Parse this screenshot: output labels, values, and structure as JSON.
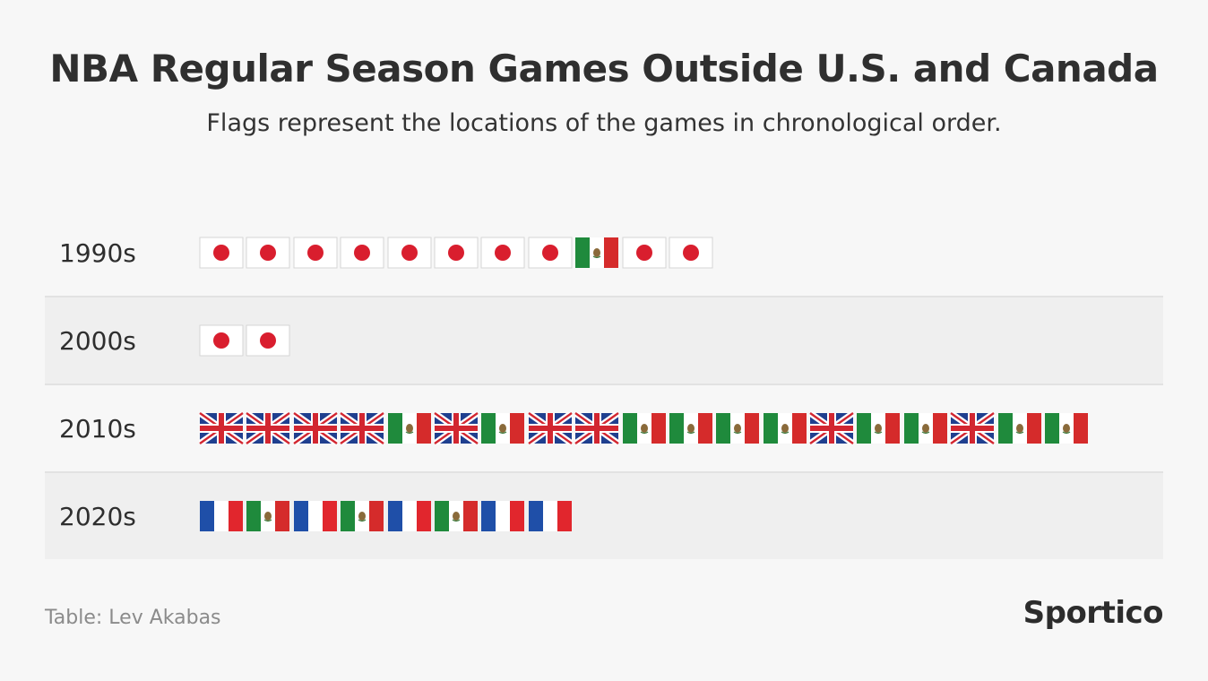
{
  "title": "NBA Regular Season Games Outside U.S. and Canada",
  "subtitle": "Flags represent the locations of the games in chronological order.",
  "source": "Table: Lev Akabas",
  "logo": "Sportico",
  "colors": {
    "japan_red": "#d91e2e",
    "mexico_green": "#1f8a3c",
    "mexico_red": "#d52b2b",
    "uk_blue": "#1f3f8f",
    "uk_red": "#d22630",
    "france_blue": "#1f4fa8",
    "france_red": "#e1262d",
    "alt_row": "#efefef"
  },
  "chart_data": {
    "type": "table",
    "title": "NBA Regular Season Games Outside U.S. and Canada",
    "subtitle": "Flags represent the locations of the games in chronological order.",
    "rows": [
      {
        "decade": "1990s",
        "games": [
          "japan",
          "japan",
          "japan",
          "japan",
          "japan",
          "japan",
          "japan",
          "japan",
          "mexico",
          "japan",
          "japan"
        ]
      },
      {
        "decade": "2000s",
        "games": [
          "japan",
          "japan"
        ]
      },
      {
        "decade": "2010s",
        "games": [
          "uk",
          "uk",
          "uk",
          "uk",
          "mexico",
          "uk",
          "mexico",
          "uk",
          "uk",
          "mexico",
          "mexico",
          "mexico",
          "mexico",
          "uk",
          "mexico",
          "mexico",
          "uk",
          "mexico",
          "mexico"
        ]
      },
      {
        "decade": "2020s",
        "games": [
          "france",
          "mexico",
          "france",
          "mexico",
          "france",
          "mexico",
          "france",
          "france"
        ]
      }
    ]
  }
}
